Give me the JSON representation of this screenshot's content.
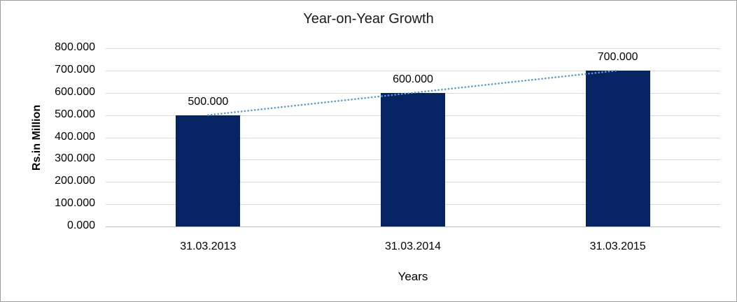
{
  "chart_data": {
    "type": "bar",
    "title": "Year-on-Year Growth",
    "xlabel": "Years",
    "ylabel": "Rs.in Million",
    "categories": [
      "31.03.2013",
      "31.03.2014",
      "31.03.2015"
    ],
    "values": [
      500,
      600,
      700
    ],
    "value_labels": [
      "500.000",
      "600.000",
      "700.000"
    ],
    "ylim": [
      0,
      800
    ],
    "y_ticks": [
      {
        "value": 800,
        "label": "800.000"
      },
      {
        "value": 700,
        "label": "700.000"
      },
      {
        "value": 600,
        "label": "600.000"
      },
      {
        "value": 500,
        "label": "500.000"
      },
      {
        "value": 400,
        "label": "400.000"
      },
      {
        "value": 300,
        "label": "300.000"
      },
      {
        "value": 200,
        "label": "200.000"
      },
      {
        "value": 100,
        "label": "100.000"
      },
      {
        "value": 0,
        "label": "0.000"
      }
    ],
    "grid": true,
    "legend": false,
    "bar_color": "#062364",
    "trendline": {
      "type": "linear",
      "style": "dotted",
      "color": "#5b9bd5"
    },
    "background_color": "#ffffff",
    "gridline_color": "#d9d9d9"
  }
}
